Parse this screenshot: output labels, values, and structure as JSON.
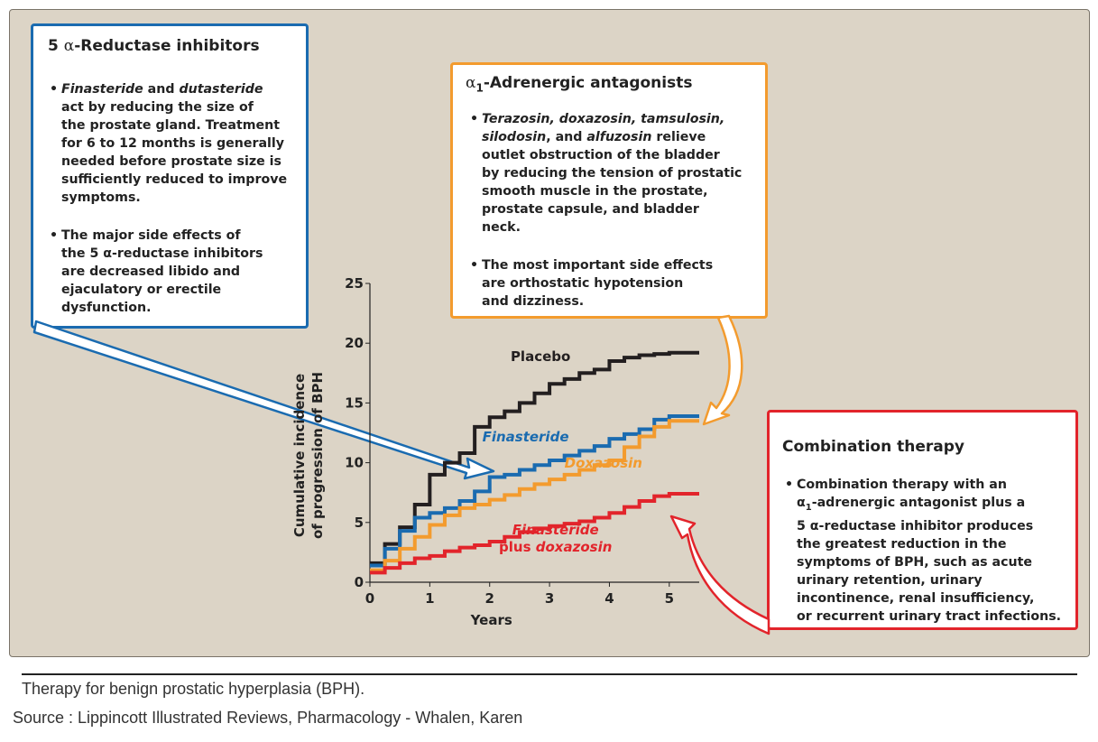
{
  "boxes": {
    "five_ari": {
      "title_prefix": "5 ",
      "title_greek": "α",
      "title_suffix": "-Reductase inhibitors",
      "bullet1": [
        {
          "parts": [
            {
              "t": "Finasteride",
              "i": true
            },
            {
              "t": " and "
            },
            {
              "t": "dutasteride",
              "i": true
            }
          ]
        },
        {
          "parts": [
            {
              "t": "act by reducing the size of"
            }
          ]
        },
        {
          "parts": [
            {
              "t": "the prostate gland. Treatment"
            }
          ]
        },
        {
          "parts": [
            {
              "t": "for 6 to 12 months is generally"
            }
          ]
        },
        {
          "parts": [
            {
              "t": "needed before prostate size is"
            }
          ]
        },
        {
          "parts": [
            {
              "t": "sufficiently reduced to improve"
            }
          ]
        },
        {
          "parts": [
            {
              "t": "symptoms."
            }
          ]
        }
      ],
      "bullet2": [
        {
          "parts": [
            {
              "t": "The major side effects of"
            }
          ]
        },
        {
          "parts": [
            {
              "t": "the 5 α-reductase inhibitors"
            }
          ]
        },
        {
          "parts": [
            {
              "t": "are decreased libido and"
            }
          ]
        },
        {
          "parts": [
            {
              "t": "ejaculatory or erectile"
            }
          ]
        },
        {
          "parts": [
            {
              "t": "dysfunction."
            }
          ]
        }
      ]
    },
    "alpha1": {
      "title_greek": "α",
      "title_sub": "1",
      "title_suffix": "-Adrenergic antagonists",
      "bullet1": [
        {
          "parts": [
            {
              "t": "Terazosin, doxazosin, tamsulosin,",
              "i": true
            }
          ]
        },
        {
          "parts": [
            {
              "t": "silodosin",
              "i": true
            },
            {
              "t": ", and "
            },
            {
              "t": "alfuzosin",
              "i": true
            },
            {
              "t": " relieve"
            }
          ]
        },
        {
          "parts": [
            {
              "t": "outlet obstruction of the bladder"
            }
          ]
        },
        {
          "parts": [
            {
              "t": "by reducing the tension of prostatic"
            }
          ]
        },
        {
          "parts": [
            {
              "t": "smooth muscle in the prostate,"
            }
          ]
        },
        {
          "parts": [
            {
              "t": "prostate capsule, and bladder"
            }
          ]
        },
        {
          "parts": [
            {
              "t": "neck."
            }
          ]
        }
      ],
      "bullet2": [
        {
          "parts": [
            {
              "t": "The most important side effects"
            }
          ]
        },
        {
          "parts": [
            {
              "t": "are orthostatic hypotension"
            }
          ]
        },
        {
          "parts": [
            {
              "t": "and dizziness."
            }
          ]
        }
      ]
    },
    "combination": {
      "title": "Combination therapy",
      "bullet1": [
        {
          "parts": [
            {
              "t": "Combination therapy with an"
            }
          ]
        },
        {
          "parts": [
            {
              "t": "α"
            },
            {
              "t": "1",
              "sub": true
            },
            {
              "t": "-adrenergic antagonist plus a"
            }
          ]
        },
        {
          "parts": [
            {
              "t": "5 α-reductase inhibitor produces"
            }
          ]
        },
        {
          "parts": [
            {
              "t": "the greatest reduction in the"
            }
          ]
        },
        {
          "parts": [
            {
              "t": "symptoms of BPH, such as acute"
            }
          ]
        },
        {
          "parts": [
            {
              "t": "urinary retention, urinary"
            }
          ]
        },
        {
          "parts": [
            {
              "t": "incontinence, renal insufficiency,"
            }
          ]
        },
        {
          "parts": [
            {
              "t": "or recurrent urinary tract infections."
            }
          ]
        }
      ]
    }
  },
  "bullet_symbol": "•",
  "caption": {
    "title": "Therapy for benign prostatic hyperplasia (BPH).",
    "source": "Source : Lippincott Illustrated Reviews, Pharmacology - Whalen, Karen"
  },
  "colors": {
    "placebo": "#231f20",
    "finasteride": "#1a6bb0",
    "doxazosin": "#f39b2e",
    "combo": "#e2242b",
    "panel": "#dcd4c6"
  },
  "chart_data": {
    "type": "line",
    "step": true,
    "title": "",
    "xlabel": "Years",
    "ylabel_lines": [
      "Cumulative incidence",
      "of progression of BPH"
    ],
    "xlim": [
      0,
      5.5
    ],
    "ylim": [
      0,
      25
    ],
    "x_ticks": [
      0,
      1,
      2,
      3,
      4,
      5
    ],
    "y_ticks": [
      0,
      5,
      10,
      15,
      20,
      25
    ],
    "series": [
      {
        "name": "Placebo",
        "label_lines": [
          {
            "parts": [
              {
                "t": "Placebo"
              }
            ]
          }
        ],
        "color": "#231f20",
        "x": [
          0,
          0.25,
          0.5,
          0.75,
          1.0,
          1.25,
          1.5,
          1.75,
          2.0,
          2.25,
          2.5,
          2.75,
          3.0,
          3.25,
          3.5,
          3.75,
          4.0,
          4.25,
          4.5,
          4.75,
          5.0,
          5.5
        ],
        "y": [
          1.6,
          3.2,
          4.6,
          6.5,
          9.0,
          10.0,
          10.8,
          13.0,
          13.8,
          14.3,
          15.0,
          15.8,
          16.6,
          17.0,
          17.5,
          17.8,
          18.5,
          18.8,
          19.0,
          19.1,
          19.2,
          19.2
        ]
      },
      {
        "name": "Finasteride",
        "label_lines": [
          {
            "parts": [
              {
                "t": "Finasteride",
                "i": true
              }
            ]
          }
        ],
        "color": "#1a6bb0",
        "x": [
          0,
          0.25,
          0.5,
          0.75,
          1.0,
          1.25,
          1.5,
          1.75,
          2.0,
          2.25,
          2.5,
          2.75,
          3.0,
          3.25,
          3.5,
          3.75,
          4.0,
          4.25,
          4.5,
          4.75,
          5.0,
          5.5
        ],
        "y": [
          1.4,
          2.8,
          4.3,
          5.4,
          5.8,
          6.2,
          6.8,
          7.6,
          8.8,
          9.0,
          9.4,
          9.8,
          10.2,
          10.6,
          11.0,
          11.4,
          12.0,
          12.4,
          12.8,
          13.6,
          13.9,
          13.9
        ]
      },
      {
        "name": "Doxazosin",
        "label_lines": [
          {
            "parts": [
              {
                "t": "Doxazosin",
                "i": true
              }
            ]
          }
        ],
        "color": "#f39b2e",
        "x": [
          0,
          0.25,
          0.5,
          0.75,
          1.0,
          1.25,
          1.5,
          1.75,
          2.0,
          2.25,
          2.5,
          2.75,
          3.0,
          3.25,
          3.5,
          3.75,
          4.0,
          4.25,
          4.5,
          4.75,
          5.0,
          5.5
        ],
        "y": [
          1.0,
          1.8,
          2.8,
          3.8,
          4.8,
          5.6,
          6.2,
          6.5,
          6.9,
          7.3,
          7.8,
          8.2,
          8.6,
          9.0,
          9.4,
          9.8,
          10.2,
          11.3,
          12.2,
          13.0,
          13.5,
          13.5
        ]
      },
      {
        "name": "Finasteride plus doxazosin",
        "label_lines": [
          {
            "parts": [
              {
                "t": "Finasteride",
                "i": true
              }
            ]
          },
          {
            "parts": [
              {
                "t": "plus "
              },
              {
                "t": "doxazosin",
                "i": true
              }
            ]
          }
        ],
        "color": "#e2242b",
        "x": [
          0,
          0.25,
          0.5,
          0.75,
          1.0,
          1.25,
          1.5,
          1.75,
          2.0,
          2.25,
          2.5,
          2.75,
          3.0,
          3.25,
          3.5,
          3.75,
          4.0,
          4.25,
          4.5,
          4.75,
          5.0,
          5.5
        ],
        "y": [
          0.8,
          1.2,
          1.6,
          2.0,
          2.2,
          2.6,
          2.9,
          3.1,
          3.4,
          3.8,
          4.2,
          4.5,
          4.7,
          4.9,
          5.1,
          5.4,
          5.8,
          6.3,
          6.8,
          7.2,
          7.4,
          7.4
        ]
      }
    ]
  }
}
